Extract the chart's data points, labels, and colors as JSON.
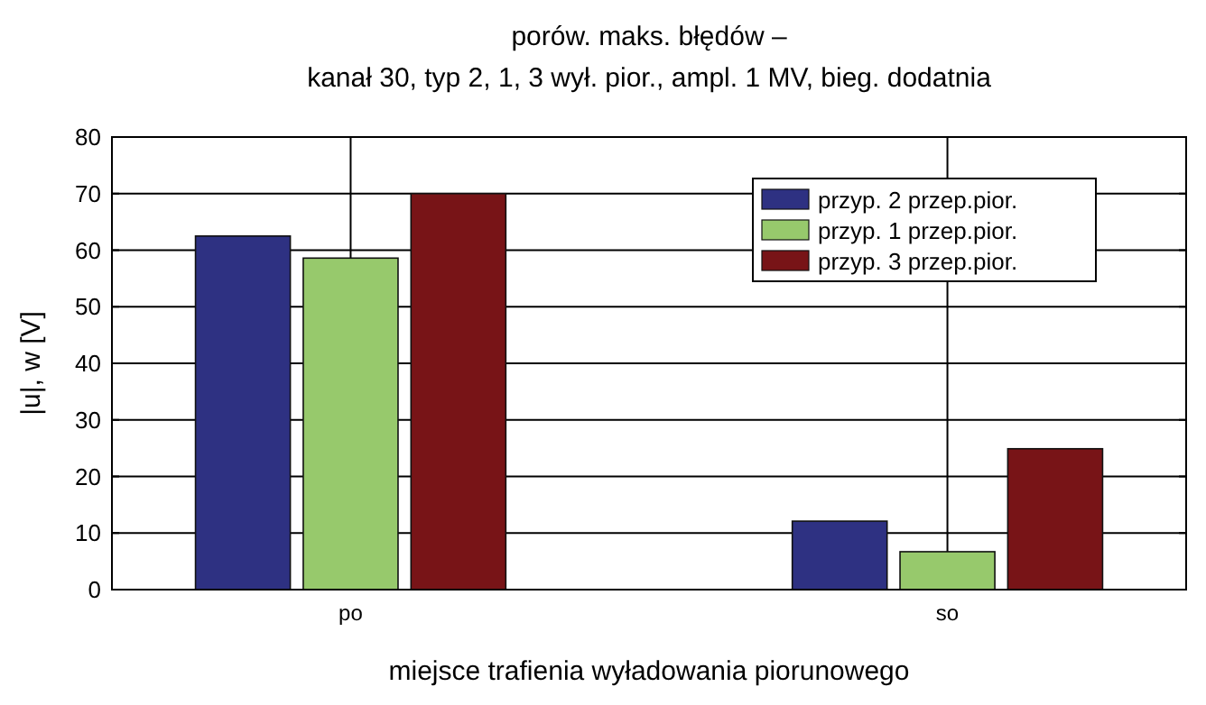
{
  "chart_data": {
    "type": "bar",
    "title": "porów. maks. błędów –",
    "subtitle": "kanał 30, typ 2, 1, 3 wył. pior., ampl. 1 MV, bieg. dodatnia",
    "xlabel": "miejsce trafienia wyładowania piorunowego",
    "ylabel": "|u|, w [V]",
    "categories": [
      "po",
      "so"
    ],
    "series": [
      {
        "name": "przyp. 2 przep.pior.",
        "color": "#2e3182",
        "values": [
          62.5,
          12.1
        ]
      },
      {
        "name": "przyp. 1 przep.pior.",
        "color": "#97c96c",
        "values": [
          58.6,
          6.7
        ]
      },
      {
        "name": "przyp. 3 przep.pior.",
        "color": "#781417",
        "values": [
          70.0,
          24.9
        ]
      }
    ],
    "ylim": [
      0,
      80
    ],
    "yticks": [
      0,
      10,
      20,
      30,
      40,
      50,
      60,
      70,
      80
    ],
    "grid": true,
    "legend": "top right"
  }
}
